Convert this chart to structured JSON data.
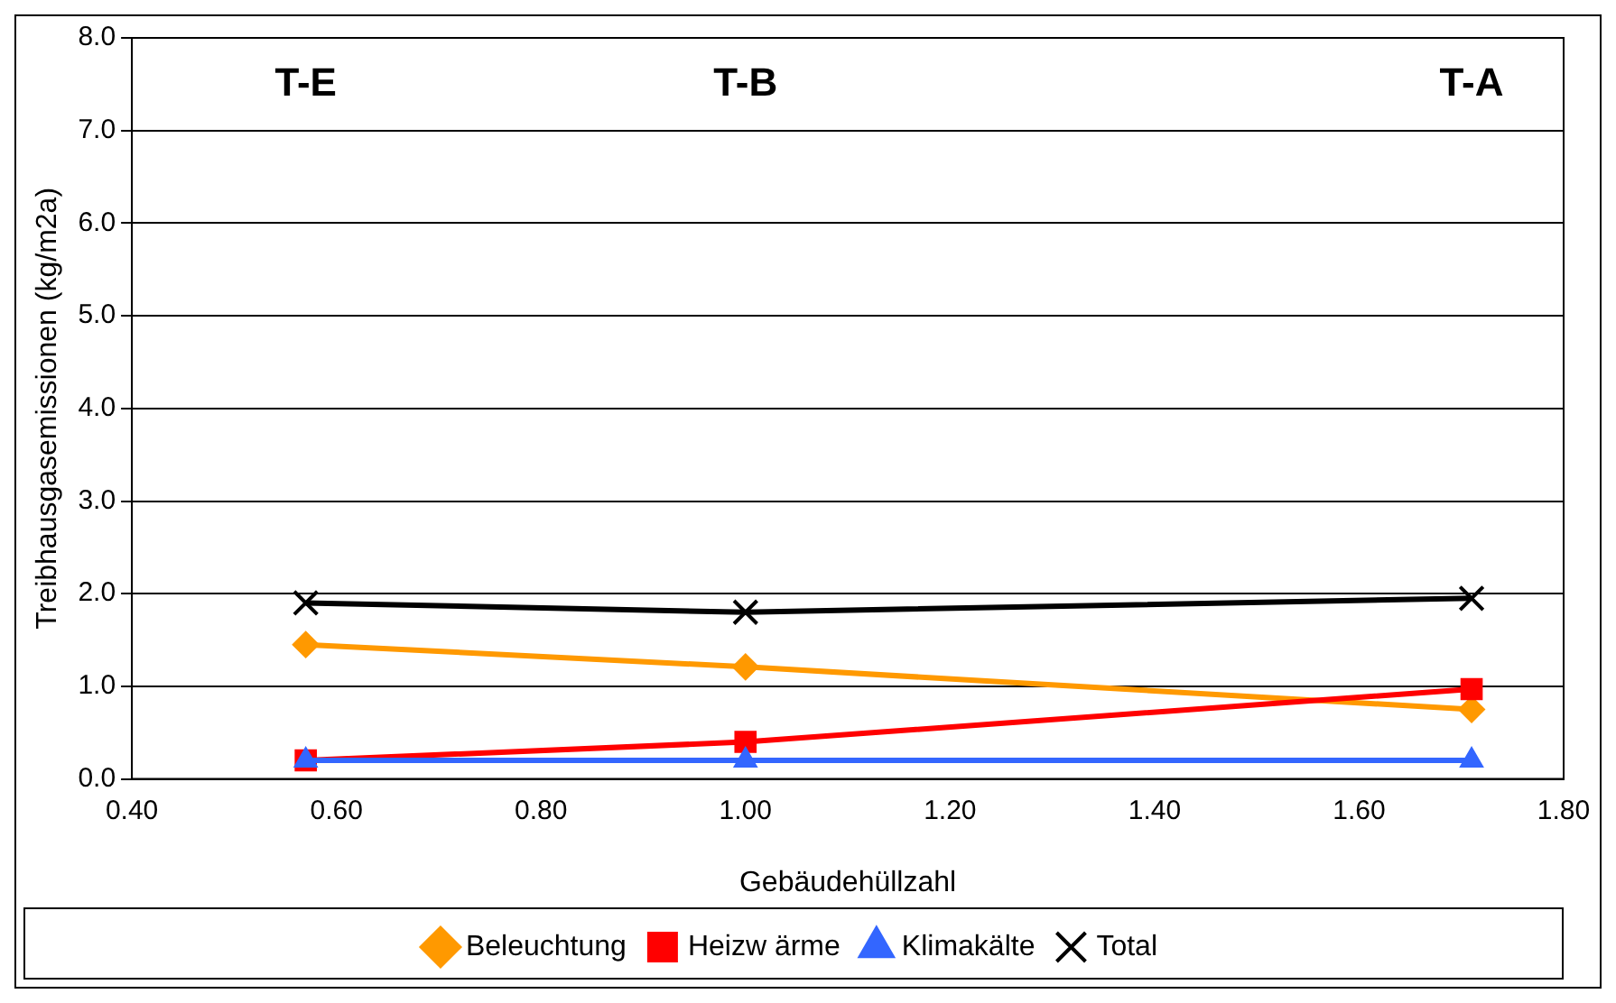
{
  "chart_data": {
    "type": "line",
    "xlabel": "Gebäudehüllzahl",
    "ylabel": "Treibhausgasemissionen (kg/m2a)",
    "x": [
      0.57,
      1.0,
      1.71
    ],
    "series": [
      {
        "name": "Beleuchtung",
        "color": "#ff9900",
        "marker": "diamond",
        "values": [
          1.45,
          1.21,
          0.75
        ]
      },
      {
        "name": "Heizw ärme",
        "color": "#ff0000",
        "marker": "square",
        "values": [
          0.2,
          0.4,
          0.97
        ]
      },
      {
        "name": "Klimakälte",
        "color": "#3366ff",
        "marker": "triangle",
        "values": [
          0.2,
          0.2,
          0.2
        ]
      },
      {
        "name": "Total",
        "color": "#000000",
        "marker": "cross",
        "values": [
          1.9,
          1.8,
          1.95
        ]
      }
    ],
    "xlim": [
      0.4,
      1.8
    ],
    "xticks": [
      {
        "value": 0.4,
        "label": "0.40"
      },
      {
        "value": 0.6,
        "label": "0.60"
      },
      {
        "value": 0.8,
        "label": "0.80"
      },
      {
        "value": 1.0,
        "label": "1.00"
      },
      {
        "value": 1.2,
        "label": "1.20"
      },
      {
        "value": 1.4,
        "label": "1.40"
      },
      {
        "value": 1.6,
        "label": "1.60"
      },
      {
        "value": 1.8,
        "label": "1.80"
      }
    ],
    "ylim": [
      0,
      8
    ],
    "yticks": [
      {
        "value": 0,
        "label": "0.0"
      },
      {
        "value": 1,
        "label": "1.0"
      },
      {
        "value": 2,
        "label": "2.0"
      },
      {
        "value": 3,
        "label": "3.0"
      },
      {
        "value": 4,
        "label": "4.0"
      },
      {
        "value": 5,
        "label": "5.0"
      },
      {
        "value": 6,
        "label": "6.0"
      },
      {
        "value": 7,
        "label": "7.0"
      },
      {
        "value": 8,
        "label": "8.0"
      }
    ],
    "annotations": [
      "T-E",
      "T-B",
      "T-A"
    ],
    "grid": "y",
    "legend": "bottom",
    "line_style": "solid"
  }
}
